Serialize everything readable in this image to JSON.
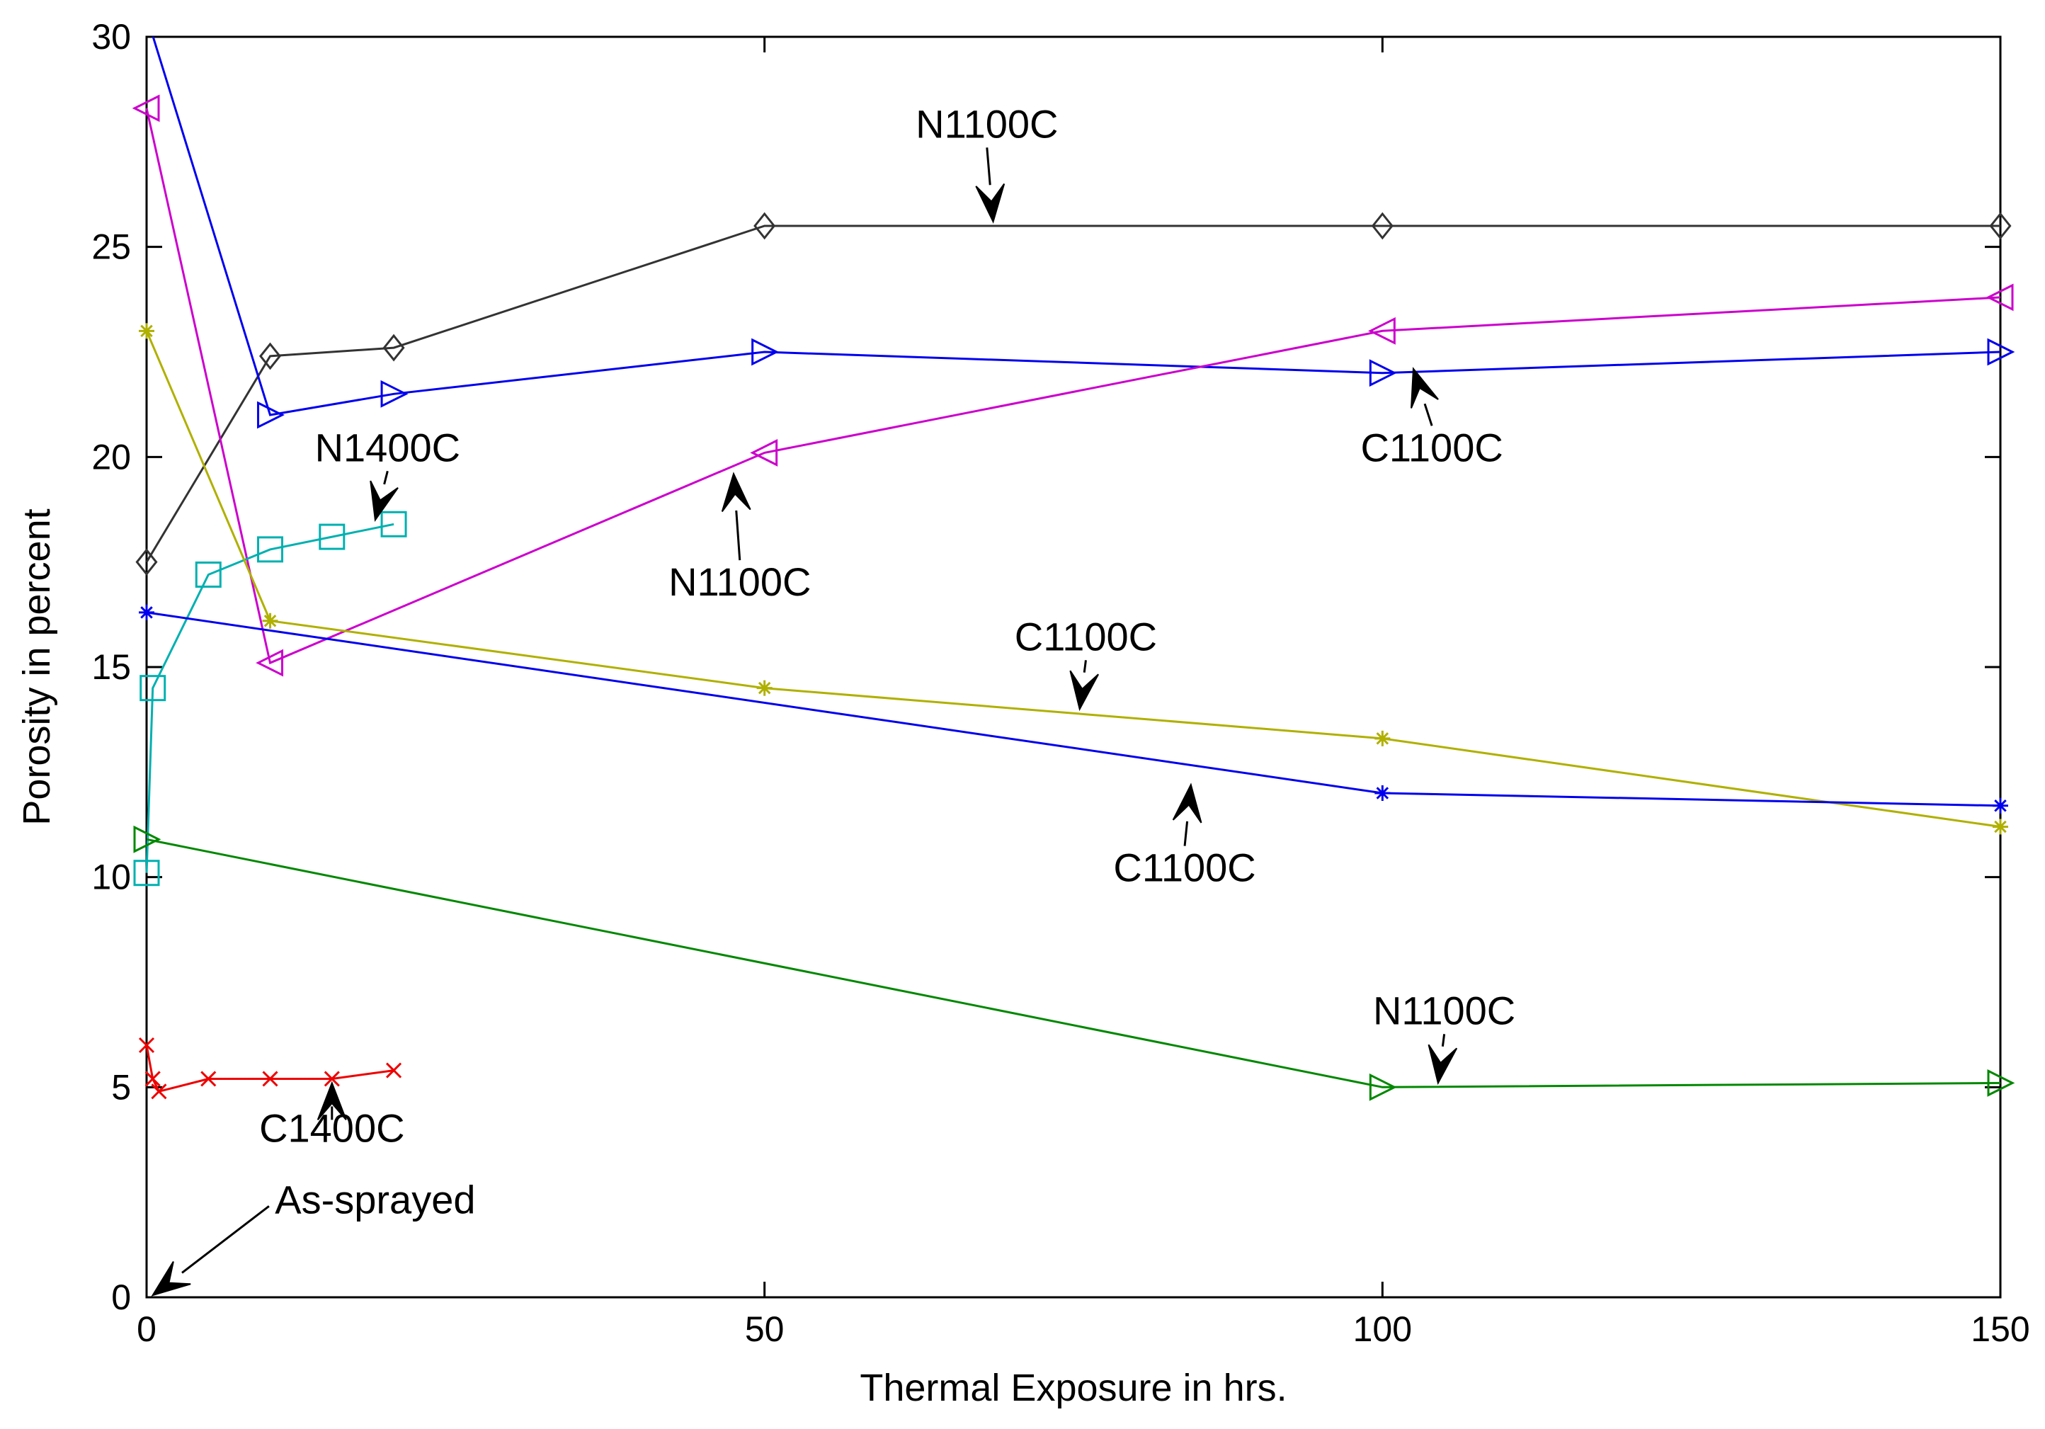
{
  "chart_data": {
    "type": "line",
    "title": "",
    "xlabel": "Thermal Exposure in hrs.",
    "ylabel": "Porosity in percent",
    "xlim": [
      0,
      150
    ],
    "ylim": [
      0,
      30
    ],
    "xticks": [
      0,
      50,
      100,
      150
    ],
    "yticks": [
      0,
      5,
      10,
      15,
      20,
      25,
      30
    ],
    "grid": false,
    "series": [
      {
        "name": "N1100C (black)",
        "color": "#333333",
        "marker": "diamond",
        "x": [
          0,
          10,
          20,
          50,
          100,
          150
        ],
        "y": [
          17.5,
          22.4,
          22.6,
          25.5,
          25.5,
          25.5
        ]
      },
      {
        "name": "C1100C (blue, triangle)",
        "color": "#0000ee",
        "marker": "triangle-right",
        "x": [
          0,
          10,
          20,
          50,
          100,
          150
        ],
        "y": [
          30.5,
          21.0,
          21.5,
          22.5,
          22.0,
          22.5
        ]
      },
      {
        "name": "N1100C (magenta)",
        "color": "#cc00cc",
        "marker": "triangle-left",
        "x": [
          0,
          10,
          50,
          100,
          150
        ],
        "y": [
          28.3,
          15.1,
          20.1,
          23.0,
          23.8
        ]
      },
      {
        "name": "N1400C (cyan)",
        "color": "#00b0b0",
        "marker": "square",
        "x": [
          0,
          0.5,
          5,
          10,
          15,
          20
        ],
        "y": [
          10.1,
          14.5,
          17.2,
          17.8,
          18.1,
          18.4
        ]
      },
      {
        "name": "C1100C (yellow)",
        "color": "#b0b000",
        "marker": "star",
        "x": [
          0,
          10,
          50,
          100,
          150
        ],
        "y": [
          23.0,
          16.1,
          14.5,
          13.3,
          11.2
        ]
      },
      {
        "name": "C1100C (blue, star)",
        "color": "#0000ee",
        "marker": "star",
        "x": [
          0,
          100,
          150
        ],
        "y": [
          16.3,
          12.0,
          11.7
        ]
      },
      {
        "name": "N1100C (green)",
        "color": "#008800",
        "marker": "triangle-right",
        "x": [
          0,
          100,
          150
        ],
        "y": [
          10.9,
          5.0,
          5.1
        ]
      },
      {
        "name": "C1400C (red)",
        "color": "#ee0000",
        "marker": "x",
        "x": [
          0,
          0.5,
          1,
          5,
          10,
          15,
          20
        ],
        "y": [
          6.0,
          5.2,
          4.9,
          5.2,
          5.2,
          5.2,
          5.4
        ]
      }
    ],
    "annotations": [
      {
        "text": "N1100C",
        "x": 68,
        "y": 27.6,
        "arrow_to": [
          68.5,
          25.6
        ]
      },
      {
        "text": "C1100C",
        "x": 104,
        "y": 19.9,
        "arrow_to": [
          102.5,
          22.1
        ]
      },
      {
        "text": "N1400C",
        "x": 19.5,
        "y": 19.9,
        "arrow_to": [
          18.5,
          18.5
        ]
      },
      {
        "text": "N1100C",
        "x": 48,
        "y": 16.7,
        "arrow_to": [
          47.5,
          19.6
        ]
      },
      {
        "text": "C1100C",
        "x": 76,
        "y": 15.4,
        "arrow_to": [
          75.5,
          14.0
        ]
      },
      {
        "text": "C1100C",
        "x": 84,
        "y": 9.9,
        "arrow_to": [
          84.5,
          12.2
        ]
      },
      {
        "text": "N1100C",
        "x": 105,
        "y": 6.5,
        "arrow_to": [
          104.5,
          5.1
        ]
      },
      {
        "text": "C1400C",
        "x": 15,
        "y": 3.7,
        "arrow_to": [
          15,
          5.1
        ]
      },
      {
        "text": "As-sprayed",
        "x": 18.5,
        "y": 2.0,
        "arrow_to": [
          0.5,
          0.05
        ]
      }
    ]
  }
}
